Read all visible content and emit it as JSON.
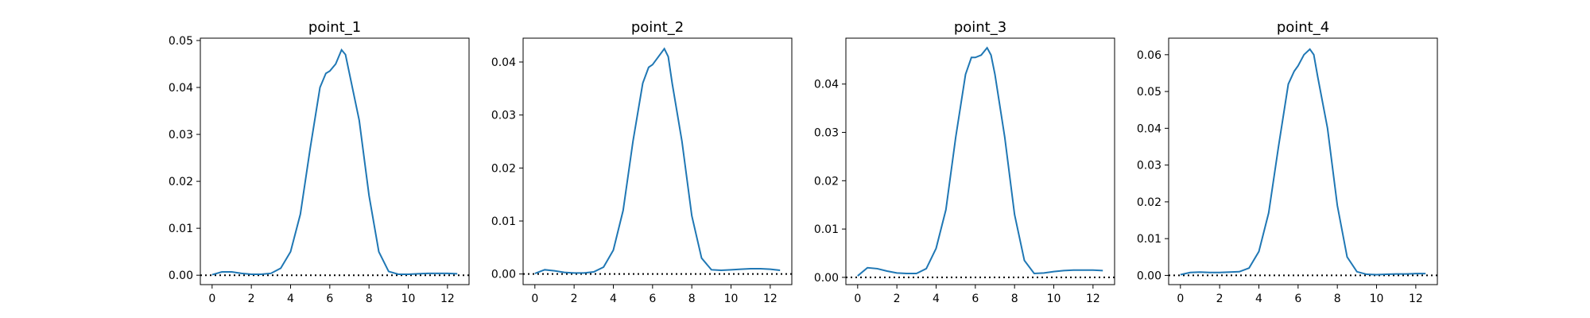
{
  "chart_data": [
    {
      "type": "line",
      "title": "point_1",
      "xlim": [
        -0.6,
        13.1
      ],
      "ylim": [
        -0.002,
        0.0505
      ],
      "xticks": [
        0,
        2,
        4,
        6,
        8,
        10,
        12
      ],
      "yticks": [
        0.0,
        0.01,
        0.02,
        0.03,
        0.04,
        0.05
      ],
      "ytick_labels": [
        "0.00",
        "0.01",
        "0.02",
        "0.03",
        "0.04",
        "0.05"
      ],
      "reference_line": {
        "y": 0,
        "style": "dotted",
        "color": "#000000"
      },
      "series": [
        {
          "color": "#1f77b4",
          "x": [
            0,
            0.5,
            1,
            1.5,
            2,
            2.5,
            3,
            3.5,
            4,
            4.5,
            5,
            5.5,
            5.8,
            6,
            6.3,
            6.6,
            6.8,
            7,
            7.5,
            8,
            8.5,
            9,
            9.5,
            10,
            10.5,
            11,
            11.5,
            12,
            12.5
          ],
          "y": [
            0.0001,
            0.0007,
            0.0007,
            0.0004,
            0.0002,
            0.0002,
            0.0004,
            0.0015,
            0.005,
            0.013,
            0.027,
            0.04,
            0.043,
            0.0435,
            0.045,
            0.048,
            0.047,
            0.043,
            0.033,
            0.017,
            0.005,
            0.0008,
            0.0002,
            0.0002,
            0.0003,
            0.0004,
            0.0004,
            0.0004,
            0.0003
          ]
        }
      ]
    },
    {
      "type": "line",
      "title": "point_2",
      "xlim": [
        -0.6,
        13.1
      ],
      "ylim": [
        -0.002,
        0.0445
      ],
      "xticks": [
        0,
        2,
        4,
        6,
        8,
        10,
        12
      ],
      "yticks": [
        0.0,
        0.01,
        0.02,
        0.03,
        0.04
      ],
      "ytick_labels": [
        "0.00",
        "0.01",
        "0.02",
        "0.03",
        "0.04"
      ],
      "reference_line": {
        "y": 0,
        "style": "dotted",
        "color": "#000000"
      },
      "series": [
        {
          "color": "#1f77b4",
          "x": [
            0,
            0.5,
            1,
            1.5,
            2,
            2.5,
            3,
            3.5,
            4,
            4.5,
            5,
            5.5,
            5.8,
            6,
            6.3,
            6.6,
            6.8,
            7,
            7.5,
            8,
            8.5,
            9,
            9.5,
            10,
            10.5,
            11,
            11.5,
            12,
            12.5
          ],
          "y": [
            0.0001,
            0.0008,
            0.0006,
            0.0003,
            0.0002,
            0.0002,
            0.0004,
            0.0013,
            0.0045,
            0.012,
            0.025,
            0.036,
            0.039,
            0.0395,
            0.041,
            0.0425,
            0.041,
            0.036,
            0.025,
            0.011,
            0.003,
            0.0008,
            0.0007,
            0.0008,
            0.0009,
            0.001,
            0.001,
            0.0009,
            0.0007
          ]
        }
      ]
    },
    {
      "type": "line",
      "title": "point_3",
      "xlim": [
        -0.6,
        13.1
      ],
      "ylim": [
        -0.0015,
        0.0495
      ],
      "xticks": [
        0,
        2,
        4,
        6,
        8,
        10,
        12
      ],
      "yticks": [
        0.0,
        0.01,
        0.02,
        0.03,
        0.04
      ],
      "ytick_labels": [
        "0.00",
        "0.01",
        "0.02",
        "0.03",
        "0.04"
      ],
      "reference_line": {
        "y": 0,
        "style": "dotted",
        "color": "#000000"
      },
      "series": [
        {
          "color": "#1f77b4",
          "x": [
            0,
            0.5,
            1,
            1.5,
            2,
            2.5,
            3,
            3.5,
            4,
            4.5,
            5,
            5.5,
            5.8,
            6,
            6.3,
            6.6,
            6.8,
            7,
            7.5,
            8,
            8.5,
            9,
            9.5,
            10,
            10.5,
            11,
            11.5,
            12,
            12.5
          ],
          "y": [
            0.0003,
            0.002,
            0.0018,
            0.0013,
            0.0009,
            0.0008,
            0.0008,
            0.0018,
            0.006,
            0.014,
            0.029,
            0.042,
            0.0455,
            0.0455,
            0.046,
            0.0475,
            0.046,
            0.042,
            0.029,
            0.013,
            0.0035,
            0.0008,
            0.0009,
            0.0012,
            0.0014,
            0.0015,
            0.0015,
            0.0015,
            0.0014
          ]
        }
      ]
    },
    {
      "type": "line",
      "title": "point_4",
      "xlim": [
        -0.6,
        13.1
      ],
      "ylim": [
        -0.0025,
        0.0645
      ],
      "xticks": [
        0,
        2,
        4,
        6,
        8,
        10,
        12
      ],
      "yticks": [
        0.0,
        0.01,
        0.02,
        0.03,
        0.04,
        0.05,
        0.06
      ],
      "ytick_labels": [
        "0.00",
        "0.01",
        "0.02",
        "0.03",
        "0.04",
        "0.05",
        "0.06"
      ],
      "reference_line": {
        "y": 0,
        "style": "dotted",
        "color": "#000000"
      },
      "series": [
        {
          "color": "#1f77b4",
          "x": [
            0,
            0.5,
            1,
            1.5,
            2,
            2.5,
            3,
            3.5,
            4,
            4.5,
            5,
            5.5,
            5.8,
            6,
            6.3,
            6.6,
            6.8,
            7,
            7.5,
            8,
            8.5,
            9,
            9.5,
            10,
            10.5,
            11,
            11.5,
            12,
            12.5
          ],
          "y": [
            0.0002,
            0.0008,
            0.0009,
            0.0008,
            0.0008,
            0.0009,
            0.001,
            0.002,
            0.0065,
            0.017,
            0.035,
            0.052,
            0.0555,
            0.057,
            0.06,
            0.0615,
            0.06,
            0.054,
            0.04,
            0.019,
            0.005,
            0.001,
            0.0003,
            0.0002,
            0.0003,
            0.0004,
            0.0004,
            0.0005,
            0.0005
          ]
        }
      ]
    }
  ]
}
